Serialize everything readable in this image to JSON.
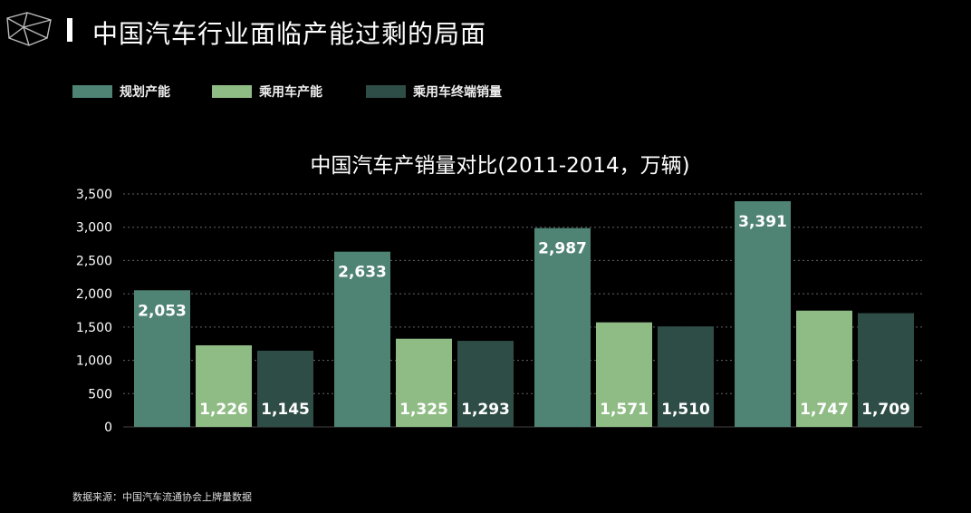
{
  "header": {
    "title": "中国汽车行业面临产能过剩的局面"
  },
  "legend": [
    {
      "label": "规划产能",
      "color": "#4f8374"
    },
    {
      "label": "乘用车产能",
      "color": "#8fbc85"
    },
    {
      "label": "乘用车终端销量",
      "color": "#2f4d47"
    }
  ],
  "source": "数据来源：中国汽车流通协会上牌量数据",
  "chart_data": {
    "type": "bar",
    "title": "中国汽车产销量对比(2011-2014，万辆)",
    "categories": [
      "",
      "",
      "",
      ""
    ],
    "ylim": [
      0,
      3500
    ],
    "yticks": [
      "0",
      "500",
      "1,000",
      "1,500",
      "2,000",
      "2,500",
      "3,000",
      "3,500"
    ],
    "grid": true,
    "legend_position": "top-left",
    "series": [
      {
        "name": "规划产能",
        "color": "#4f8374",
        "values": [
          2053,
          2633,
          2987,
          3391
        ],
        "labels": [
          "2,053",
          "2,633",
          "2,987",
          "3,391"
        ]
      },
      {
        "name": "乘用车产能",
        "color": "#8fbc85",
        "values": [
          1226,
          1325,
          1571,
          1747
        ],
        "labels": [
          "1,226",
          "1,325",
          "1,571",
          "1,747"
        ]
      },
      {
        "name": "乘用车终端销量",
        "color": "#2f4d47",
        "values": [
          1145,
          1293,
          1510,
          1709
        ],
        "labels": [
          "1,145",
          "1,293",
          "1,510",
          "1,709"
        ]
      }
    ]
  }
}
